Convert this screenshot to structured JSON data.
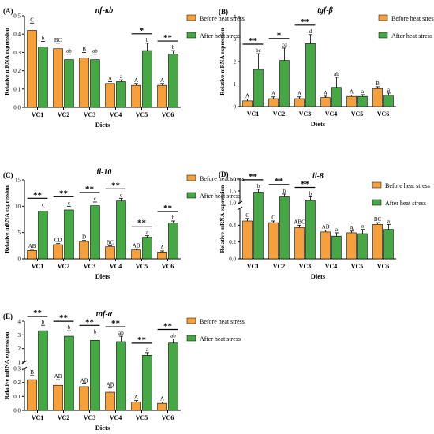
{
  "colors": {
    "before": "#F6A03B",
    "after": "#45A845",
    "stroke": "#000000"
  },
  "legend": {
    "before": "Before heat stress",
    "after": "After heat stress"
  },
  "chart_data": [
    {
      "type": "bar",
      "panel": "(A)",
      "title": "nf-κb",
      "xlabel": "Diets",
      "ylabel": "Relative mRNA expression",
      "categories": [
        "VC1",
        "VC2",
        "VC3",
        "VC4",
        "VC5",
        "VC6"
      ],
      "ylim": [
        0,
        0.5
      ],
      "ticks": [
        "0.0",
        "0.1",
        "0.2",
        "0.3",
        "0.4",
        "0.5"
      ],
      "series": [
        {
          "name": "Before heat stress",
          "values": [
            0.42,
            0.32,
            0.27,
            0.13,
            0.12,
            0.12
          ],
          "errors": [
            0.04,
            0.03,
            0.03,
            0.01,
            0.01,
            0.01
          ],
          "letters": [
            "C",
            "BC",
            "B",
            "A",
            "A",
            "A"
          ]
        },
        {
          "name": "After heat stress",
          "values": [
            0.33,
            0.26,
            0.26,
            0.14,
            0.31,
            0.29
          ],
          "errors": [
            0.03,
            0.03,
            0.03,
            0.01,
            0.04,
            0.02
          ],
          "letters": [
            "b",
            "ab",
            "ab",
            "a",
            "b",
            "b"
          ]
        }
      ],
      "significance": [
        "",
        "",
        "",
        "",
        "*",
        "**"
      ]
    },
    {
      "type": "bar",
      "panel": "(B)",
      "title": "tgf-β",
      "xlabel": "Diets",
      "ylabel": "Relative mRNA expression",
      "categories": [
        "VC1",
        "VC2",
        "VC3",
        "VC4",
        "VC5",
        "VC6"
      ],
      "ylim": [
        0,
        4
      ],
      "ticks": [
        "0",
        "1",
        "2",
        "3",
        "4"
      ],
      "series": [
        {
          "name": "Before heat stress",
          "values": [
            0.25,
            0.35,
            0.35,
            0.4,
            0.45,
            0.8
          ],
          "errors": [
            0.08,
            0.08,
            0.08,
            0.06,
            0.06,
            0.08
          ],
          "letters": [
            "A",
            "A",
            "A",
            "A",
            "A",
            "B"
          ]
        },
        {
          "name": "After heat stress",
          "values": [
            1.65,
            2.05,
            2.8,
            0.85,
            0.45,
            0.5
          ],
          "errors": [
            0.7,
            0.55,
            0.4,
            0.45,
            0.08,
            0.1
          ],
          "letters": [
            "bc",
            "cd",
            "d",
            "ab",
            "a",
            "a"
          ]
        }
      ],
      "significance": [
        "**",
        "*",
        "**",
        "",
        "",
        ""
      ]
    },
    {
      "type": "bar",
      "panel": "(C)",
      "title": "il-10",
      "xlabel": "Diets",
      "ylabel": "Relative mRNA expression",
      "categories": [
        "VC1",
        "VC2",
        "VC3",
        "VC4",
        "VC5",
        "VC6"
      ],
      "ylim": [
        0,
        15
      ],
      "ticks": [
        "0",
        "5",
        "10",
        "15"
      ],
      "series": [
        {
          "name": "Before heat stress",
          "values": [
            1.6,
            2.7,
            3.3,
            2.3,
            1.7,
            1.3
          ],
          "errors": [
            0.2,
            0.2,
            0.2,
            0.2,
            0.2,
            0.2
          ],
          "letters": [
            "AB",
            "CD",
            "D",
            "BC",
            "AB",
            "A"
          ]
        },
        {
          "name": "After heat stress",
          "values": [
            9.1,
            9.3,
            10.1,
            11.0,
            4.1,
            6.8
          ],
          "errors": [
            0.6,
            0.7,
            0.7,
            0.5,
            0.3,
            0.4
          ],
          "letters": [
            "c",
            "c",
            "c",
            "c",
            "a",
            "b"
          ]
        }
      ],
      "significance": [
        "**",
        "**",
        "**",
        "**",
        "**",
        "**"
      ]
    },
    {
      "type": "bar",
      "panel": "(D)",
      "title": "il-8",
      "xlabel": "Diets",
      "ylabel": "Relative mRNA expression",
      "categories": [
        "VC1",
        "VC2",
        "VC3",
        "VC4",
        "VC5",
        "VC6"
      ],
      "axis_break": [
        0.6,
        1.0
      ],
      "ticks": [
        "0.0",
        "0.2",
        "0.4",
        "1.0",
        "1.5",
        "2.0"
      ],
      "series": [
        {
          "name": "Before heat stress",
          "values": [
            0.45,
            0.43,
            0.37,
            0.32,
            0.31,
            0.41
          ],
          "errors": [
            0.03,
            0.02,
            0.03,
            0.02,
            0.02,
            0.02
          ],
          "letters": [
            "C",
            "C",
            "ABC",
            "AB",
            "A",
            "BC"
          ]
        },
        {
          "name": "After heat stress",
          "values": [
            1.45,
            1.25,
            1.1,
            0.27,
            0.3,
            0.35
          ],
          "errors": [
            0.12,
            0.12,
            0.15,
            0.04,
            0.05,
            0.06
          ],
          "letters": [
            "b",
            "b",
            "b",
            "a",
            "a",
            "a"
          ]
        }
      ],
      "significance": [
        "**",
        "**",
        "**",
        "",
        "",
        ""
      ]
    },
    {
      "type": "bar",
      "panel": "(E)",
      "title": "tnf-α",
      "xlabel": "Diets",
      "ylabel": "Relative mRNA expression",
      "categories": [
        "VC1",
        "VC2",
        "VC3",
        "VC4",
        "VC5",
        "VC6"
      ],
      "axis_break": [
        0.3,
        1.0
      ],
      "ticks": [
        "0.0",
        "0.1",
        "0.2",
        "0.3",
        "1",
        "2",
        "3",
        "4"
      ],
      "series": [
        {
          "name": "Before heat stress",
          "values": [
            0.22,
            0.18,
            0.17,
            0.13,
            0.06,
            0.05
          ],
          "errors": [
            0.03,
            0.04,
            0.02,
            0.03,
            0.01,
            0.01
          ],
          "letters": [
            "B",
            "AB",
            "AB",
            "AB",
            "A",
            "A"
          ]
        },
        {
          "name": "After heat stress",
          "values": [
            3.3,
            2.9,
            2.6,
            2.5,
            1.5,
            2.4
          ],
          "errors": [
            0.4,
            0.4,
            0.4,
            0.4,
            0.2,
            0.3
          ],
          "letters": [
            "b",
            "b",
            "b",
            "ab",
            "a",
            "ab"
          ]
        }
      ],
      "significance": [
        "**",
        "**",
        "**",
        "**",
        "**",
        "**"
      ]
    }
  ]
}
